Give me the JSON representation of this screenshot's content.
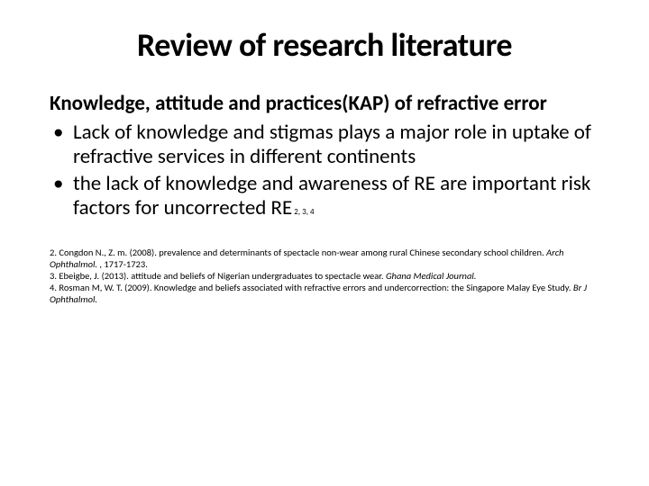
{
  "title": "Review of research literature",
  "subtitle": "Knowledge, attitude and practices(KAP) of refractive error",
  "bullets": [
    "Lack of knowledge and stigmas plays a major role in uptake of refractive services in different continents",
    "the lack of knowledge and awareness of RE are important risk factors for uncorrected RE"
  ],
  "bullet2_sup": " 2, 3, 4",
  "refs": {
    "r2a": "2. Congdon N., Z. m. (2008). prevalence and determinants of spectacle non-wear among rural Chinese secondary school children. ",
    "r2b": "Arch Ophthalmol.",
    "r2c": " , 1717-1723.",
    "r3a": "3. Ebeigbe, J. (2013). attitude and beliefs of Nigerian undergraduates to spectacle wear. ",
    "r3b": "Ghana Medical Journal.",
    "r4a": "4. Rosman M, W. T. (2009). Knowledge and beliefs associated with refractive errors and undercorrection: the Singapore Malay Eye Study. ",
    "r4b": "Br J Ophthalmol."
  },
  "colors": {
    "text": "#000000",
    "background": "#ffffff"
  },
  "fonts": {
    "title_size": 36,
    "body_size": 23,
    "ref_size": 10.5
  }
}
